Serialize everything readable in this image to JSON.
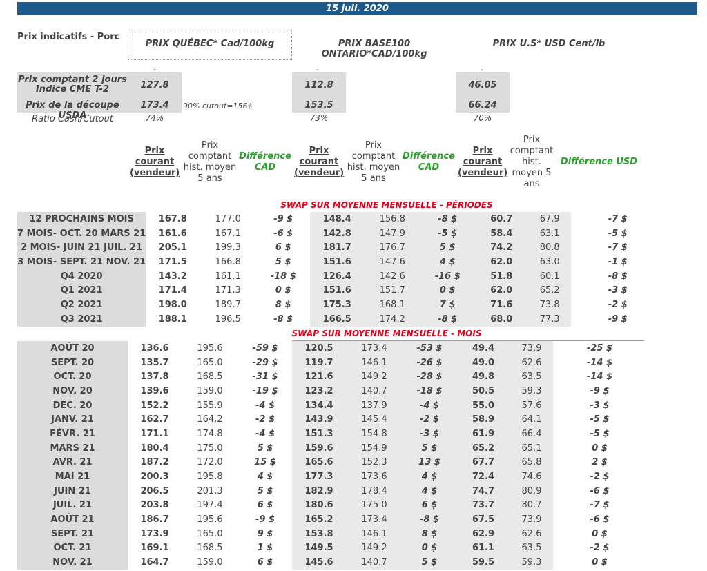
{
  "date": "15 juil. 2020",
  "title": "Prix indicatifs - Porc",
  "columns": {
    "quebec": "PRIX QUÉBEC* Cad/100kg",
    "ontario": "PRIX BASE100 ONTARIO*CAD/100kg",
    "us": "PRIX U.S* USD Cent/lb"
  },
  "dash": "-",
  "summary": {
    "cash_label": "Prix comptant 2 jours Indice CME T-2",
    "cutout_label": "Prix de la découpe USDA",
    "ratio_label": "Ratio Cash/Cutout",
    "cutout_note": "90% cutout=156$",
    "quebec": {
      "cash": "127.8",
      "cutout": "173.4",
      "ratio": "74%"
    },
    "ontario": {
      "cash": "112.8",
      "cutout": "153.5",
      "ratio": "73%"
    },
    "us": {
      "cash": "46.05",
      "cutout": "66.24",
      "ratio": "70%"
    }
  },
  "headers": {
    "current": "Prix courant (vendeur)",
    "hist": "Prix comptant hist. moyen 5 ans",
    "hist_us": "Prix comptant hist. moyen 5 ans",
    "diff_cad": "Différence CAD",
    "diff_usd": "Différence USD"
  },
  "section_periods": "SWAP SUR MOYENNE MENSUELLE - PÉRIODES",
  "section_months": "SWAP SUR MOYENNE MENSUELLE - MOIS",
  "periods": [
    {
      "label": "12 PROCHAINS MOIS",
      "q": "167.8",
      "qh": "177.0",
      "qd": "-9 $",
      "o": "148.4",
      "oh": "156.8",
      "od": "-8 $",
      "u": "60.7",
      "uh": "67.9",
      "ud": "-7 $"
    },
    {
      "label": "7 MOIS- OCT. 20 MARS 21",
      "q": "161.6",
      "qh": "167.1",
      "qd": "-6 $",
      "o": "142.8",
      "oh": "147.9",
      "od": "-5 $",
      "u": "58.4",
      "uh": "63.1",
      "ud": "-5 $"
    },
    {
      "label": "2 MOIS- JUIN 21 JUIL. 21",
      "q": "205.1",
      "qh": "199.3",
      "qd": "6 $",
      "o": "181.7",
      "oh": "176.7",
      "od": "5 $",
      "u": "74.2",
      "uh": "80.8",
      "ud": "-7 $"
    },
    {
      "label": "3 MOIS- SEPT. 21 NOV. 21",
      "q": "171.5",
      "qh": "166.8",
      "qd": "5 $",
      "o": "151.6",
      "oh": "147.6",
      "od": "4 $",
      "u": "62.0",
      "uh": "63.0",
      "ud": "-1 $"
    },
    {
      "label": "Q4 2020",
      "q": "143.2",
      "qh": "161.1",
      "qd": "-18 $",
      "o": "126.4",
      "oh": "142.6",
      "od": "-16 $",
      "u": "51.8",
      "uh": "60.1",
      "ud": "-8 $"
    },
    {
      "label": "Q1 2021",
      "q": "171.4",
      "qh": "171.3",
      "qd": "0 $",
      "o": "151.6",
      "oh": "151.7",
      "od": "0 $",
      "u": "62.0",
      "uh": "65.2",
      "ud": "-3 $"
    },
    {
      "label": "Q2 2021",
      "q": "198.0",
      "qh": "189.7",
      "qd": "8 $",
      "o": "175.3",
      "oh": "168.1",
      "od": "7 $",
      "u": "71.6",
      "uh": "73.8",
      "ud": "-2 $"
    },
    {
      "label": "Q3 2021",
      "q": "188.1",
      "qh": "196.5",
      "qd": "-8 $",
      "o": "166.5",
      "oh": "174.2",
      "od": "-8 $",
      "u": "68.0",
      "uh": "77.3",
      "ud": "-9 $"
    }
  ],
  "months": [
    {
      "label": "AOÛT 20",
      "q": "136.6",
      "qh": "195.6",
      "qd": "-59 $",
      "o": "120.5",
      "oh": "173.4",
      "od": "-53 $",
      "u": "49.4",
      "uh": "73.9",
      "ud": "-25 $"
    },
    {
      "label": "SEPT. 20",
      "q": "135.7",
      "qh": "165.0",
      "qd": "-29 $",
      "o": "119.7",
      "oh": "146.1",
      "od": "-26 $",
      "u": "49.0",
      "uh": "62.6",
      "ud": "-14 $"
    },
    {
      "label": "OCT. 20",
      "q": "137.8",
      "qh": "168.5",
      "qd": "-31 $",
      "o": "121.6",
      "oh": "149.2",
      "od": "-28 $",
      "u": "49.8",
      "uh": "63.5",
      "ud": "-14 $"
    },
    {
      "label": "NOV. 20",
      "q": "139.6",
      "qh": "159.0",
      "qd": "-19 $",
      "o": "123.2",
      "oh": "140.7",
      "od": "-18 $",
      "u": "50.5",
      "uh": "59.3",
      "ud": "-9 $"
    },
    {
      "label": "DÉC. 20",
      "q": "152.2",
      "qh": "155.9",
      "qd": "-4 $",
      "o": "134.4",
      "oh": "137.9",
      "od": "-4 $",
      "u": "55.0",
      "uh": "57.6",
      "ud": "-3 $"
    },
    {
      "label": "JANV. 21",
      "q": "162.7",
      "qh": "164.2",
      "qd": "-2 $",
      "o": "143.9",
      "oh": "145.4",
      "od": "-2 $",
      "u": "58.9",
      "uh": "64.1",
      "ud": "-5 $"
    },
    {
      "label": "FÉVR. 21",
      "q": "171.1",
      "qh": "174.8",
      "qd": "-4 $",
      "o": "151.3",
      "oh": "154.8",
      "od": "-3 $",
      "u": "61.9",
      "uh": "66.4",
      "ud": "-5 $"
    },
    {
      "label": "MARS 21",
      "q": "180.4",
      "qh": "175.0",
      "qd": "5 $",
      "o": "159.6",
      "oh": "154.9",
      "od": "5 $",
      "u": "65.2",
      "uh": "65.1",
      "ud": "0 $"
    },
    {
      "label": "AVR. 21",
      "q": "187.2",
      "qh": "172.0",
      "qd": "15 $",
      "o": "165.6",
      "oh": "152.3",
      "od": "13 $",
      "u": "67.7",
      "uh": "65.8",
      "ud": "2 $"
    },
    {
      "label": "MAI 21",
      "q": "200.3",
      "qh": "195.8",
      "qd": "4 $",
      "o": "177.3",
      "oh": "173.6",
      "od": "4 $",
      "u": "72.4",
      "uh": "74.6",
      "ud": "-2 $"
    },
    {
      "label": "JUIN 21",
      "q": "206.5",
      "qh": "201.3",
      "qd": "5 $",
      "o": "182.9",
      "oh": "178.4",
      "od": "4 $",
      "u": "74.7",
      "uh": "80.9",
      "ud": "-6 $"
    },
    {
      "label": "JUIL. 21",
      "q": "203.8",
      "qh": "197.4",
      "qd": "6 $",
      "o": "180.6",
      "oh": "175.0",
      "od": "6 $",
      "u": "73.7",
      "uh": "80.7",
      "ud": "-7 $"
    },
    {
      "label": "AOÛT 21",
      "q": "186.7",
      "qh": "195.6",
      "qd": "-9 $",
      "o": "165.2",
      "oh": "173.4",
      "od": "-8 $",
      "u": "67.5",
      "uh": "73.9",
      "ud": "-6 $"
    },
    {
      "label": "SEPT. 21",
      "q": "173.9",
      "qh": "165.0",
      "qd": "9 $",
      "o": "153.8",
      "oh": "146.1",
      "od": "8 $",
      "u": "62.9",
      "uh": "62.6",
      "ud": "0 $"
    },
    {
      "label": "OCT. 21",
      "q": "169.1",
      "qh": "168.5",
      "qd": "1 $",
      "o": "149.5",
      "oh": "149.2",
      "od": "0 $",
      "u": "61.1",
      "uh": "63.5",
      "ud": "-2 $"
    },
    {
      "label": "NOV. 21",
      "q": "164.7",
      "qh": "159.0",
      "qd": "6 $",
      "o": "145.6",
      "oh": "140.7",
      "od": "5 $",
      "u": "59.5",
      "uh": "59.3",
      "ud": "0 $"
    }
  ]
}
